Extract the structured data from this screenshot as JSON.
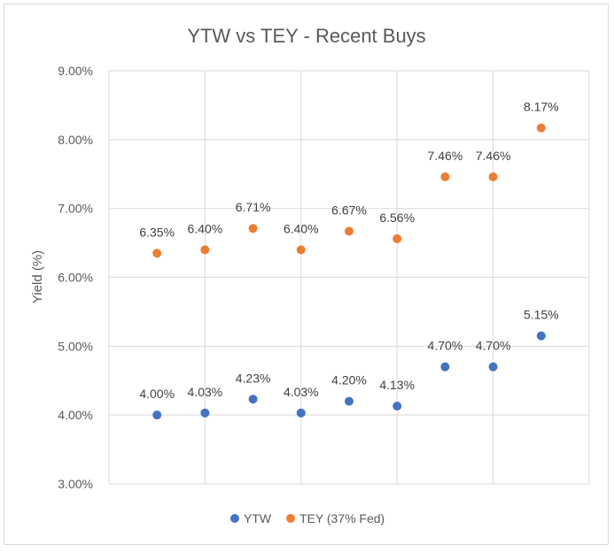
{
  "chart_data": {
    "type": "scatter",
    "title": "YTW vs TEY - Recent Buys",
    "xlabel": "",
    "ylabel": "Yield (%)",
    "x": [
      1,
      2,
      3,
      4,
      5,
      6,
      7,
      8,
      9
    ],
    "xlim": [
      0,
      10
    ],
    "ylim": [
      3.0,
      9.0
    ],
    "y_ticks": [
      "3.00%",
      "4.00%",
      "5.00%",
      "6.00%",
      "7.00%",
      "8.00%",
      "9.00%"
    ],
    "grid": true,
    "legend_position": "bottom",
    "series": [
      {
        "name": "YTW",
        "color": "#4472c4",
        "values": [
          4.0,
          4.03,
          4.23,
          4.03,
          4.2,
          4.13,
          4.7,
          4.7,
          5.15
        ],
        "labels": [
          "4.00%",
          "4.03%",
          "4.23%",
          "4.03%",
          "4.20%",
          "4.13%",
          "4.70%",
          "4.70%",
          "5.15%"
        ]
      },
      {
        "name": "TEY (37% Fed)",
        "color": "#ed7d31",
        "values": [
          6.35,
          6.4,
          6.71,
          6.4,
          6.67,
          6.56,
          7.46,
          7.46,
          8.17
        ],
        "labels": [
          "6.35%",
          "6.40%",
          "6.71%",
          "6.40%",
          "6.67%",
          "6.56%",
          "7.46%",
          "7.46%",
          "8.17%"
        ]
      }
    ]
  }
}
